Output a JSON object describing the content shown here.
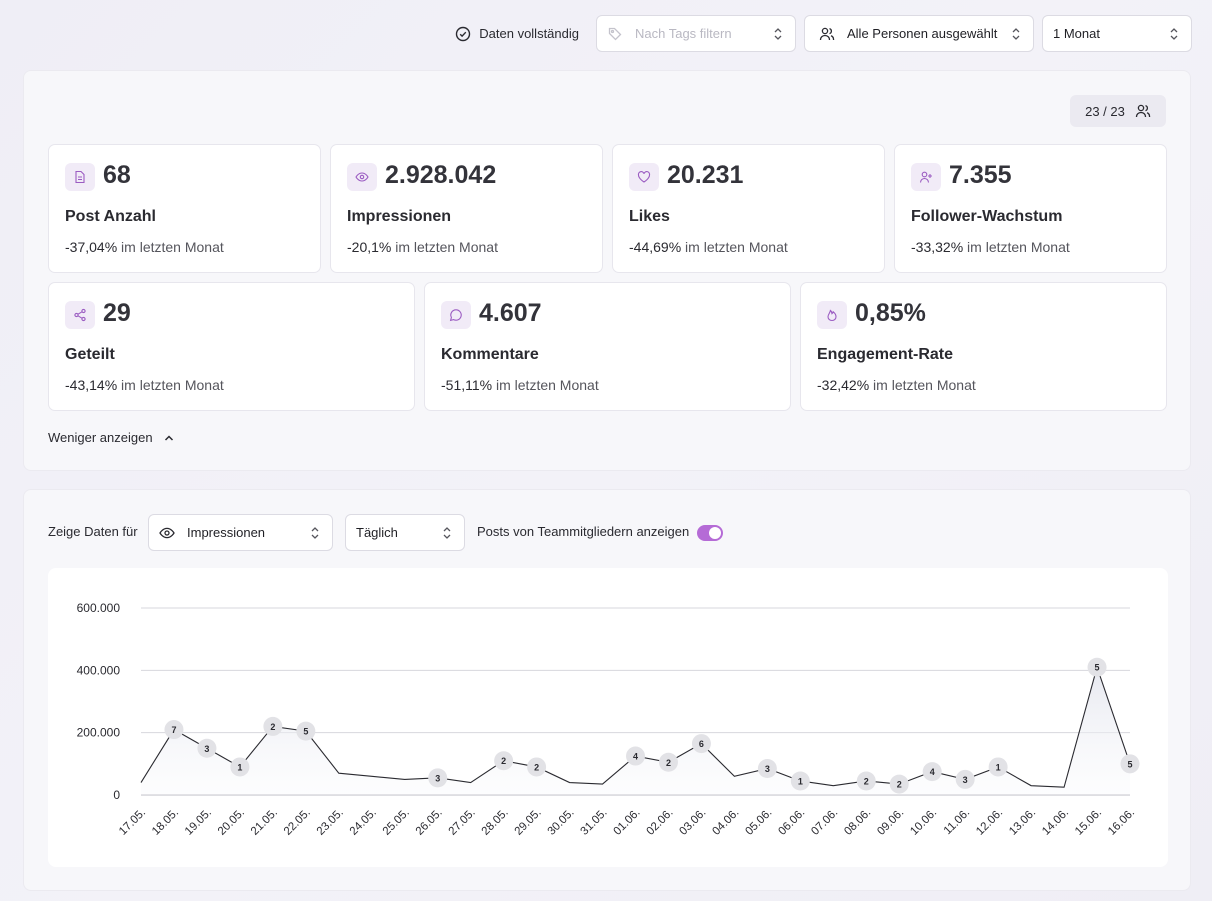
{
  "topbar": {
    "status_label": "Daten vollständig",
    "tags_placeholder": "Nach Tags filtern",
    "persons_value": "Alle Personen ausgewählt",
    "period_value": "1 Monat"
  },
  "overview": {
    "member_count": "23 / 23",
    "cards": [
      {
        "icon": "document-icon",
        "value": "68",
        "label": "Post Anzahl",
        "change": "-37,04%",
        "change_suffix": "im letzten Monat"
      },
      {
        "icon": "eye-icon",
        "value": "2.928.042",
        "label": "Impressionen",
        "change": "-20,1%",
        "change_suffix": "im letzten Monat"
      },
      {
        "icon": "heart-icon",
        "value": "20.231",
        "label": "Likes",
        "change": "-44,69%",
        "change_suffix": "im letzten Monat"
      },
      {
        "icon": "user-plus-icon",
        "value": "7.355",
        "label": "Follower-Wachstum",
        "change": "-33,32%",
        "change_suffix": "im letzten Monat"
      },
      {
        "icon": "share-icon",
        "value": "29",
        "label": "Geteilt",
        "change": "-43,14%",
        "change_suffix": "im letzten Monat"
      },
      {
        "icon": "comment-icon",
        "value": "4.607",
        "label": "Kommentare",
        "change": "-51,11%",
        "change_suffix": "im letzten Monat"
      },
      {
        "icon": "flame-icon",
        "value": "0,85%",
        "label": "Engagement-Rate",
        "change": "-32,42%",
        "change_suffix": "im letzten Monat"
      }
    ],
    "show_less_label": "Weniger anzeigen"
  },
  "controls": {
    "show_data_label": "Zeige Daten für",
    "metric_value": "Impressionen",
    "interval_value": "Täglich",
    "team_posts_label": "Posts von Teammitgliedern anzeigen",
    "team_posts_enabled": true
  },
  "colors": {
    "accent": "#b56bd6",
    "icon_bg": "#f1ebf7",
    "line": "#2a2a30",
    "marker": "#e2e2e6"
  },
  "chart_data": {
    "type": "line",
    "x": [
      "17.05.",
      "18.05.",
      "19.05.",
      "20.05.",
      "21.05.",
      "22.05.",
      "23.05.",
      "24.05.",
      "25.05.",
      "26.05.",
      "27.05.",
      "28.05.",
      "29.05.",
      "30.05.",
      "31.05.",
      "01.06.",
      "02.06.",
      "03.06.",
      "04.06.",
      "05.06.",
      "06.06.",
      "07.06.",
      "08.06.",
      "09.06.",
      "10.06.",
      "11.06.",
      "12.06.",
      "13.06.",
      "14.06.",
      "15.06.",
      "16.06."
    ],
    "values": [
      40000,
      210000,
      150000,
      90000,
      220000,
      205000,
      70000,
      60000,
      50000,
      55000,
      40000,
      110000,
      90000,
      40000,
      35000,
      125000,
      105000,
      165000,
      60000,
      85000,
      45000,
      30000,
      45000,
      35000,
      75000,
      50000,
      90000,
      30000,
      25000,
      410000,
      100000
    ],
    "post_counts": [
      null,
      "7",
      "3",
      "1",
      "2",
      "5",
      null,
      null,
      null,
      "3",
      null,
      "2",
      "2",
      null,
      null,
      "4",
      "2",
      "6",
      null,
      "3",
      "1",
      null,
      "2",
      "2",
      "4",
      "3",
      "1",
      null,
      null,
      "5",
      "5"
    ],
    "y_ticks": [
      "0",
      "200.000",
      "400.000",
      "600.000"
    ],
    "ylim": [
      0,
      600000
    ],
    "grid": true,
    "legend": "none"
  }
}
